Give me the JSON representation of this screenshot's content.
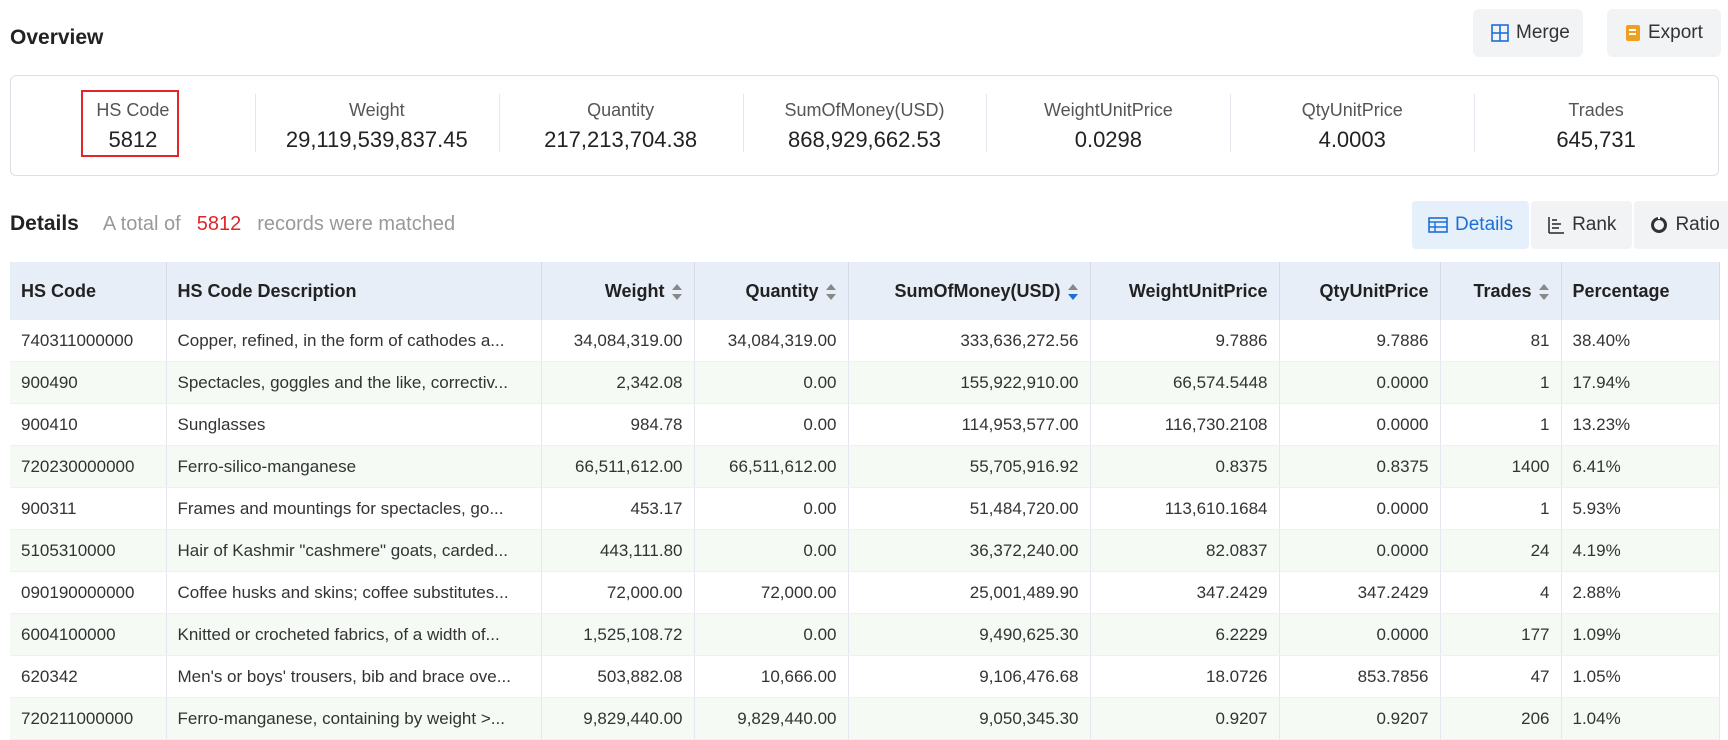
{
  "header": {
    "title": "Overview",
    "merge_label": "Merge",
    "export_label": "Export"
  },
  "overview": {
    "stats": [
      {
        "label": "HS Code",
        "value": "5812"
      },
      {
        "label": "Weight",
        "value": "29,119,539,837.45"
      },
      {
        "label": "Quantity",
        "value": "217,213,704.38"
      },
      {
        "label": "SumOfMoney(USD)",
        "value": "868,929,662.53"
      },
      {
        "label": "WeightUnitPrice",
        "value": "0.0298"
      },
      {
        "label": "QtyUnitPrice",
        "value": "4.0003"
      },
      {
        "label": "Trades",
        "value": "645,731"
      }
    ]
  },
  "details": {
    "title": "Details",
    "summary_prefix": "A total of",
    "count": "5812",
    "summary_suffix": "records were matched",
    "views": [
      "Details",
      "Rank",
      "Ratio"
    ]
  },
  "table": {
    "columns": [
      "HS Code",
      "HS Code Description",
      "Weight",
      "Quantity",
      "SumOfMoney(USD)",
      "WeightUnitPrice",
      "QtyUnitPrice",
      "Trades",
      "Percentage"
    ],
    "rows": [
      [
        "740311000000",
        "Copper, refined, in the form of cathodes a...",
        "34,084,319.00",
        "34,084,319.00",
        "333,636,272.56",
        "9.7886",
        "9.7886",
        "81",
        "38.40%"
      ],
      [
        "900490",
        "Spectacles, goggles and the like, correctiv...",
        "2,342.08",
        "0.00",
        "155,922,910.00",
        "66,574.5448",
        "0.0000",
        "1",
        "17.94%"
      ],
      [
        "900410",
        "Sunglasses",
        "984.78",
        "0.00",
        "114,953,577.00",
        "116,730.2108",
        "0.0000",
        "1",
        "13.23%"
      ],
      [
        "720230000000",
        "Ferro-silico-manganese",
        "66,511,612.00",
        "66,511,612.00",
        "55,705,916.92",
        "0.8375",
        "0.8375",
        "1400",
        "6.41%"
      ],
      [
        "900311",
        "Frames and mountings for spectacles, go...",
        "453.17",
        "0.00",
        "51,484,720.00",
        "113,610.1684",
        "0.0000",
        "1",
        "5.93%"
      ],
      [
        "5105310000",
        "Hair of Kashmir \"cashmere\" goats, carded...",
        "443,111.80",
        "0.00",
        "36,372,240.00",
        "82.0837",
        "0.0000",
        "24",
        "4.19%"
      ],
      [
        "090190000000",
        "Coffee husks and skins; coffee substitutes...",
        "72,000.00",
        "72,000.00",
        "25,001,489.90",
        "347.2429",
        "347.2429",
        "4",
        "2.88%"
      ],
      [
        "6004100000",
        "Knitted or crocheted fabrics, of a width of...",
        "1,525,108.72",
        "0.00",
        "9,490,625.30",
        "6.2229",
        "0.0000",
        "177",
        "1.09%"
      ],
      [
        "620342",
        "Men's or boys' trousers, bib and brace ove...",
        "503,882.08",
        "10,666.00",
        "9,106,476.68",
        "18.0726",
        "853.7856",
        "47",
        "1.05%"
      ],
      [
        "720211000000",
        "Ferro-manganese, containing by weight >...",
        "9,829,440.00",
        "9,829,440.00",
        "9,050,345.30",
        "0.9207",
        "0.9207",
        "206",
        "1.04%"
      ]
    ]
  },
  "colors": {
    "accent": "#1d6fd6",
    "highlight": "#e0262b",
    "export_icon": "#f0a020"
  }
}
